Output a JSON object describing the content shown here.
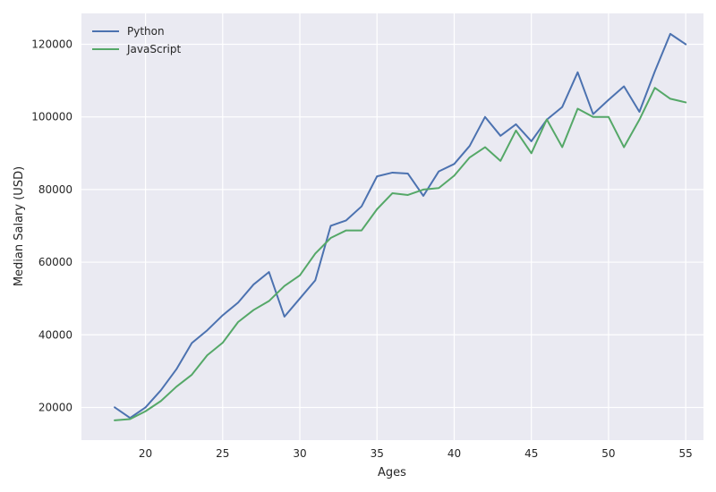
{
  "chart_data": {
    "type": "line",
    "xlabel": "Ages",
    "ylabel": "Median Salary (USD)",
    "xlim": [
      15.85,
      56.15
    ],
    "ylim": [
      11000,
      128500
    ],
    "xticks": [
      20,
      25,
      30,
      35,
      40,
      45,
      50,
      55
    ],
    "yticks": [
      20000,
      40000,
      60000,
      80000,
      100000,
      120000
    ],
    "grid": true,
    "legend_position": "top-left",
    "x": [
      18,
      19,
      20,
      21,
      22,
      23,
      24,
      25,
      26,
      27,
      28,
      29,
      30,
      31,
      32,
      33,
      34,
      35,
      36,
      37,
      38,
      39,
      40,
      41,
      42,
      43,
      44,
      45,
      46,
      47,
      48,
      49,
      50,
      51,
      52,
      53,
      54,
      55
    ],
    "series": [
      {
        "name": "Python",
        "color": "#4c72b0",
        "values": [
          20046,
          17100,
          20000,
          24744,
          30500,
          37732,
          41247,
          45372,
          48876,
          53850,
          57287,
          45000,
          50000,
          55000,
          70000,
          71496,
          75370,
          83640,
          84666,
          84392,
          78254,
          85000,
          87038,
          91991,
          100000,
          94796,
          97962,
          93302,
          99240,
          102736,
          112285,
          100771,
          104708,
          108423,
          101407,
          112542,
          122870,
          120000
        ]
      },
      {
        "name": "JavaScript",
        "color": "#55a868",
        "values": [
          16446,
          16791,
          18942,
          21780,
          25704,
          29000,
          34372,
          37810,
          43515,
          46823,
          49293,
          53437,
          56373,
          62375,
          66674,
          68745,
          68746,
          74583,
          79000,
          78508,
          79996,
          80403,
          83820,
          88833,
          91660,
          87892,
          96243,
          90000,
          99313,
          91660,
          102264,
          100000,
          100000,
          91660,
          99240,
          108000,
          105000,
          104000
        ]
      }
    ]
  }
}
